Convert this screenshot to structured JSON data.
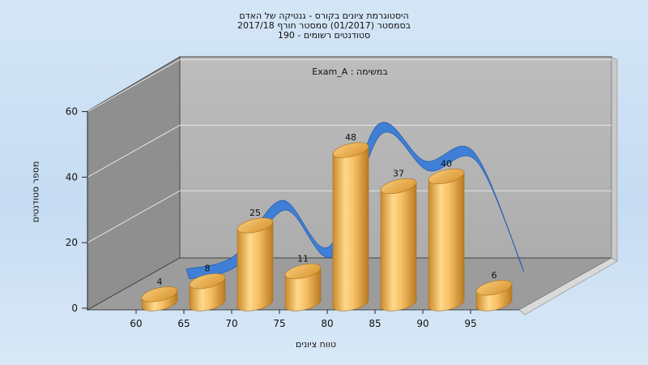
{
  "title_lines": [
    "היסטוגרמת ציונים בקורס - גנטיקה של האדם",
    "בסמסטר  (01/2017)  סמסטר חורף 2017/18",
    "סטודנטים רשומים - 190"
  ],
  "chart_data": {
    "type": "bar",
    "title": "היסטוגרמת ציונים בקורס - גנטיקה של האדם",
    "annotation": "במשימה : Exam_A",
    "xlabel": "טווח ציונים",
    "ylabel": "מספר סטודנטים",
    "ylim": [
      0,
      60
    ],
    "y_ticks": [
      0,
      20,
      40,
      60
    ],
    "x_ticks": [
      "60",
      "65",
      "70",
      "75",
      "80",
      "85",
      "90",
      "95"
    ],
    "bars": [
      4,
      8,
      25,
      11,
      48,
      37,
      40,
      6
    ],
    "grid": true,
    "colors": {
      "bars": "#f0b45a",
      "ribbon": "#3f7fd6",
      "back_wall": "#b4b4b4",
      "side_wall": "#8e8e8e"
    }
  }
}
